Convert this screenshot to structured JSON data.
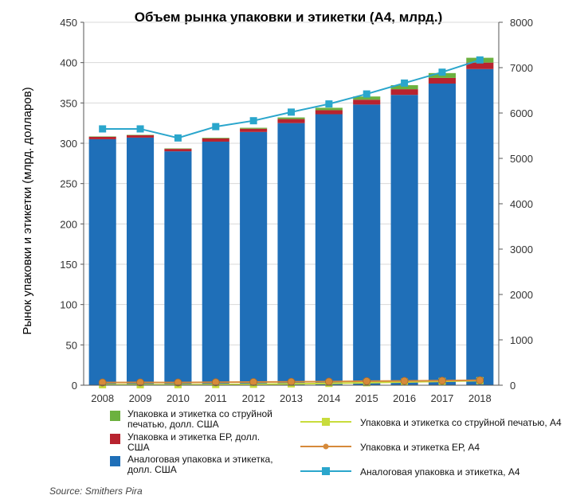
{
  "chart_data": {
    "type": "bar",
    "title": "Объем рынка упаковки и этикетки (А4, млрд.)",
    "ylabel": "Рынок упаковки и этикетки (млрд. долларов)",
    "ylabel_right": "",
    "categories": [
      "2008",
      "2009",
      "2010",
      "2011",
      "2012",
      "2013",
      "2014",
      "2015",
      "2016",
      "2017",
      "2018"
    ],
    "ylim": [
      0,
      450
    ],
    "ylim_right": [
      0,
      8000
    ],
    "yticks": [
      0,
      50,
      100,
      150,
      200,
      250,
      300,
      350,
      400,
      450
    ],
    "yticks_right": [
      0,
      1000,
      2000,
      3000,
      4000,
      5000,
      6000,
      7000,
      8000
    ],
    "grid": true,
    "stacked": true,
    "bar_series": [
      {
        "name": "Аналоговая упаковка и этикетка, долл. США",
        "color": "#1f6fb8",
        "values": [
          305,
          307,
          290,
          302,
          314,
          325,
          336,
          348,
          360,
          374,
          392
        ]
      },
      {
        "name": "Упаковка и этикетка ЕР, долл. США",
        "color": "#b8232f",
        "values": [
          3,
          3,
          3,
          4,
          4,
          5,
          5,
          6,
          7,
          7,
          8
        ]
      },
      {
        "name": "Упаковка и этикетка со струйной печатью, долл. США",
        "color": "#6cb13f",
        "values": [
          0.5,
          0.5,
          0.6,
          0.8,
          1.2,
          2,
          3,
          4,
          5,
          6,
          6
        ]
      }
    ],
    "line_series": [
      {
        "name": "Упаковка и этикетка со струйной печатью, А4",
        "axis": "right",
        "color": "#c8dc3c",
        "marker": "square",
        "values": [
          10,
          10,
          12,
          15,
          20,
          30,
          40,
          55,
          70,
          85,
          100
        ]
      },
      {
        "name": "Упаковка и этикетка ЕР, А4",
        "axis": "right",
        "color": "#d68a3a",
        "marker": "circle",
        "values": [
          60,
          62,
          60,
          65,
          70,
          75,
          80,
          90,
          95,
          100,
          110
        ]
      },
      {
        "name": "Аналоговая упаковка и этикетка, А4",
        "axis": "right",
        "color": "#2aa6cc",
        "marker": "square",
        "values": [
          5650,
          5650,
          5450,
          5700,
          5830,
          6020,
          6200,
          6420,
          6660,
          6900,
          7170
        ]
      }
    ]
  },
  "legend": {
    "bars": [
      {
        "line1": "Упаковка и этикетка со струйной",
        "line2": "печатью, долл. США",
        "color": "#6cb13f"
      },
      {
        "line1": "Упаковка и этикетка ЕР, долл.",
        "line2": "США",
        "color": "#b8232f"
      },
      {
        "line1": "Аналоговая упаковка и этикетка,",
        "line2": "долл. США",
        "color": "#1f6fb8"
      }
    ],
    "lines": [
      {
        "label": "Упаковка и этикетка со струйной печатью, А4",
        "color": "#c8dc3c",
        "marker": "square"
      },
      {
        "label": "Упаковка и этикетка ЕР, А4",
        "color": "#d68a3a",
        "marker": "circle"
      },
      {
        "label": "Аналоговая упаковка и этикетка, А4",
        "color": "#2aa6cc",
        "marker": "square"
      }
    ]
  },
  "source": "Source: Smithers Pira"
}
